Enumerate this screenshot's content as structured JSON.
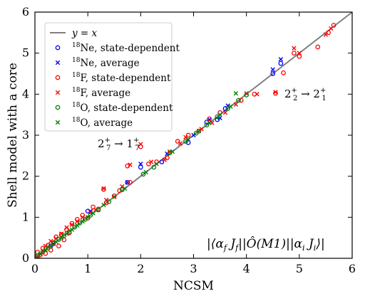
{
  "chart_data": {
    "type": "scatter",
    "xlabel": "NCSM",
    "ylabel": "Shell model with a core",
    "xlim": [
      0,
      6
    ],
    "ylim": [
      0,
      6
    ],
    "xticks": [
      "0",
      "1",
      "2",
      "3",
      "4",
      "5",
      "6"
    ],
    "yticks": [
      "0",
      "1",
      "2",
      "3",
      "4",
      "5",
      "6"
    ],
    "grid": false,
    "legend_position": "top-left",
    "reference_line": {
      "label": "y = x",
      "color": "#7f7f7f"
    },
    "annotations": [
      {
        "text": "2⁺₂ → 2⁺₁",
        "x": 4.75,
        "y": 4.05
      },
      {
        "text": "2⁺₇ → 1⁺₇",
        "x": 1.25,
        "y": 2.75
      },
      {
        "text": "|⟨αf Jf||Ô(M1)||αi Ji⟩|",
        "x": 3.2,
        "y": 0.35
      }
    ],
    "series": [
      {
        "name": "18Ne, state-dependent",
        "marker": "circle",
        "color": "#0000ff",
        "x": [
          0.05,
          0.3,
          1.0,
          1.75,
          2.0,
          2.4,
          2.9,
          3.25,
          3.45,
          3.6,
          4.5,
          4.65
        ],
        "y": [
          0.06,
          0.3,
          1.15,
          1.85,
          2.22,
          2.35,
          2.82,
          3.32,
          3.38,
          3.65,
          4.5,
          4.75
        ]
      },
      {
        "name": "18Ne, average",
        "marker": "cross",
        "color": "#0000ff",
        "x": [
          0.1,
          0.35,
          1.05,
          1.75,
          2.0,
          2.5,
          3.0,
          3.3,
          3.5,
          3.65,
          4.5,
          4.65
        ],
        "y": [
          0.1,
          0.35,
          1.15,
          1.85,
          2.3,
          2.55,
          3.0,
          3.38,
          3.42,
          3.72,
          4.6,
          4.85
        ]
      },
      {
        "name": "18F, state-dependent",
        "marker": "circle",
        "color": "#ff0000",
        "x": [
          0.05,
          0.1,
          0.15,
          0.2,
          0.25,
          0.3,
          0.35,
          0.4,
          0.45,
          0.5,
          0.55,
          0.6,
          0.65,
          0.7,
          0.8,
          0.9,
          1.0,
          1.1,
          1.2,
          1.3,
          1.35,
          1.5,
          1.6,
          1.75,
          1.8,
          2.0,
          2.15,
          2.3,
          2.5,
          2.7,
          2.9,
          3.1,
          3.3,
          3.5,
          3.9,
          4.15,
          4.55,
          4.7,
          4.9,
          5.0,
          5.35,
          5.55,
          5.65
        ],
        "y": [
          0.15,
          0.08,
          0.25,
          0.12,
          0.32,
          0.2,
          0.38,
          0.52,
          0.3,
          0.58,
          0.45,
          0.7,
          0.62,
          0.85,
          0.95,
          1.05,
          0.98,
          1.25,
          1.2,
          1.68,
          1.35,
          1.52,
          1.65,
          2.25,
          1.85,
          2.72,
          2.3,
          2.35,
          2.45,
          2.85,
          3.0,
          3.1,
          3.4,
          3.55,
          3.85,
          4.0,
          4.02,
          4.52,
          5.0,
          4.92,
          5.15,
          5.5,
          5.68
        ]
      },
      {
        "name": "18F, average",
        "marker": "cross",
        "color": "#ff0000",
        "x": [
          0.05,
          0.15,
          0.2,
          0.3,
          0.4,
          0.5,
          0.6,
          0.7,
          0.8,
          0.9,
          1.05,
          1.15,
          1.3,
          1.35,
          1.5,
          1.65,
          1.8,
          2.0,
          2.2,
          2.45,
          2.55,
          2.75,
          2.85,
          3.15,
          3.35,
          3.6,
          3.8,
          4.0,
          4.2,
          4.55,
          4.9,
          5.0,
          5.5,
          5.6
        ],
        "y": [
          0.05,
          0.18,
          0.3,
          0.42,
          0.48,
          0.6,
          0.75,
          0.82,
          0.9,
          1.0,
          1.12,
          1.18,
          1.7,
          1.42,
          1.5,
          1.75,
          2.28,
          2.78,
          2.35,
          2.4,
          2.6,
          2.8,
          2.95,
          3.15,
          3.3,
          3.55,
          3.75,
          4.02,
          4.0,
          4.05,
          5.12,
          5.0,
          5.45,
          5.6
        ]
      },
      {
        "name": "18O, state-dependent",
        "marker": "circle",
        "color": "#008000",
        "x": [
          0.05,
          0.15,
          0.25,
          0.35,
          0.45,
          0.55,
          0.65,
          0.75,
          0.85,
          0.95,
          1.05,
          1.2,
          1.4,
          1.65,
          2.05,
          2.25,
          2.55,
          2.85,
          3.05,
          3.25,
          3.45,
          3.65,
          3.85,
          4.0
        ],
        "y": [
          0.06,
          0.16,
          0.25,
          0.36,
          0.46,
          0.55,
          0.65,
          0.76,
          0.86,
          0.95,
          1.05,
          1.18,
          1.38,
          1.67,
          2.05,
          2.22,
          2.57,
          2.85,
          3.05,
          3.25,
          3.45,
          3.65,
          3.85,
          3.98
        ]
      },
      {
        "name": "18O, average",
        "marker": "cross",
        "color": "#008000",
        "x": [
          0.1,
          0.2,
          0.3,
          0.4,
          0.5,
          0.6,
          0.7,
          0.8,
          0.9,
          1.0,
          1.1,
          1.3,
          1.5,
          1.7,
          2.1,
          2.3,
          2.6,
          2.9,
          3.1,
          3.3,
          3.5,
          3.7,
          3.8
        ],
        "y": [
          0.1,
          0.2,
          0.3,
          0.4,
          0.5,
          0.6,
          0.7,
          0.8,
          0.9,
          1.0,
          1.1,
          1.3,
          1.5,
          1.7,
          2.1,
          2.3,
          2.6,
          2.9,
          3.1,
          3.3,
          3.5,
          3.7,
          4.02
        ]
      }
    ]
  }
}
